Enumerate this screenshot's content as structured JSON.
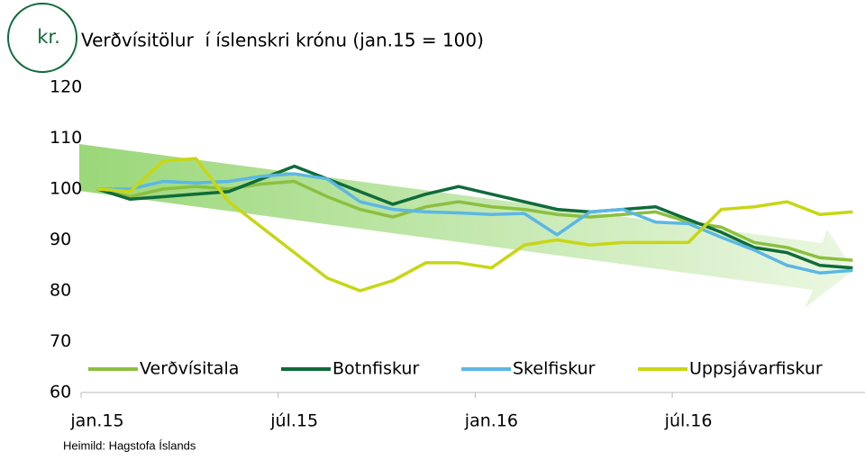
{
  "chart_data": {
    "type": "line",
    "badge": "kr.",
    "title": "Verðvísitölur  í íslenskri krónu (jan.15 = 100)",
    "source": "Heimild: Hagstofa Íslands",
    "categories": [
      "jan.15",
      null,
      null,
      null,
      null,
      null,
      "júl.15",
      null,
      null,
      null,
      null,
      null,
      "jan.16",
      null,
      null,
      null,
      null,
      null,
      "júl.16",
      null,
      null,
      null,
      null,
      null
    ],
    "ylim": [
      60,
      120
    ],
    "yticks": [
      60,
      70,
      80,
      90,
      100,
      110,
      120
    ],
    "legend": "bottom",
    "series": [
      {
        "name": "Verðvísitala",
        "color": "#8cbf3f",
        "values": [
          100,
          98.5,
          100,
          100.5,
          100,
          101,
          101.5,
          98.5,
          96,
          94.5,
          96.5,
          97.5,
          96.5,
          96,
          95,
          94.5,
          95,
          95.5,
          93.5,
          92.5,
          89.5,
          88.5,
          86.5,
          86
        ]
      },
      {
        "name": "Botnfiskur",
        "color": "#0f6b3a",
        "values": [
          100,
          98,
          98.5,
          99,
          99.5,
          102,
          104.5,
          102,
          99.5,
          97,
          99,
          100.5,
          99,
          97.5,
          96,
          95.5,
          96,
          96.5,
          94,
          91.5,
          88.5,
          87.5,
          85,
          84.5
        ]
      },
      {
        "name": "Skelfiskur",
        "color": "#5bb7e5",
        "values": [
          100,
          100,
          101.5,
          101.2,
          101.5,
          102.5,
          103,
          102,
          97.5,
          96,
          95.5,
          95.3,
          95,
          95.2,
          91,
          95.5,
          96,
          93.5,
          93.2,
          90.5,
          88,
          85,
          83.5,
          84
        ]
      },
      {
        "name": "Uppsjávarfiskur",
        "color": "#c8d614",
        "values": [
          100,
          99.5,
          105.5,
          106,
          97.5,
          92.5,
          87.5,
          82.5,
          80,
          82,
          85.5,
          85.5,
          84.5,
          89,
          90,
          89,
          89.5,
          89.5,
          89.5,
          96,
          96.5,
          97.5,
          95,
          95.5
        ]
      }
    ]
  }
}
